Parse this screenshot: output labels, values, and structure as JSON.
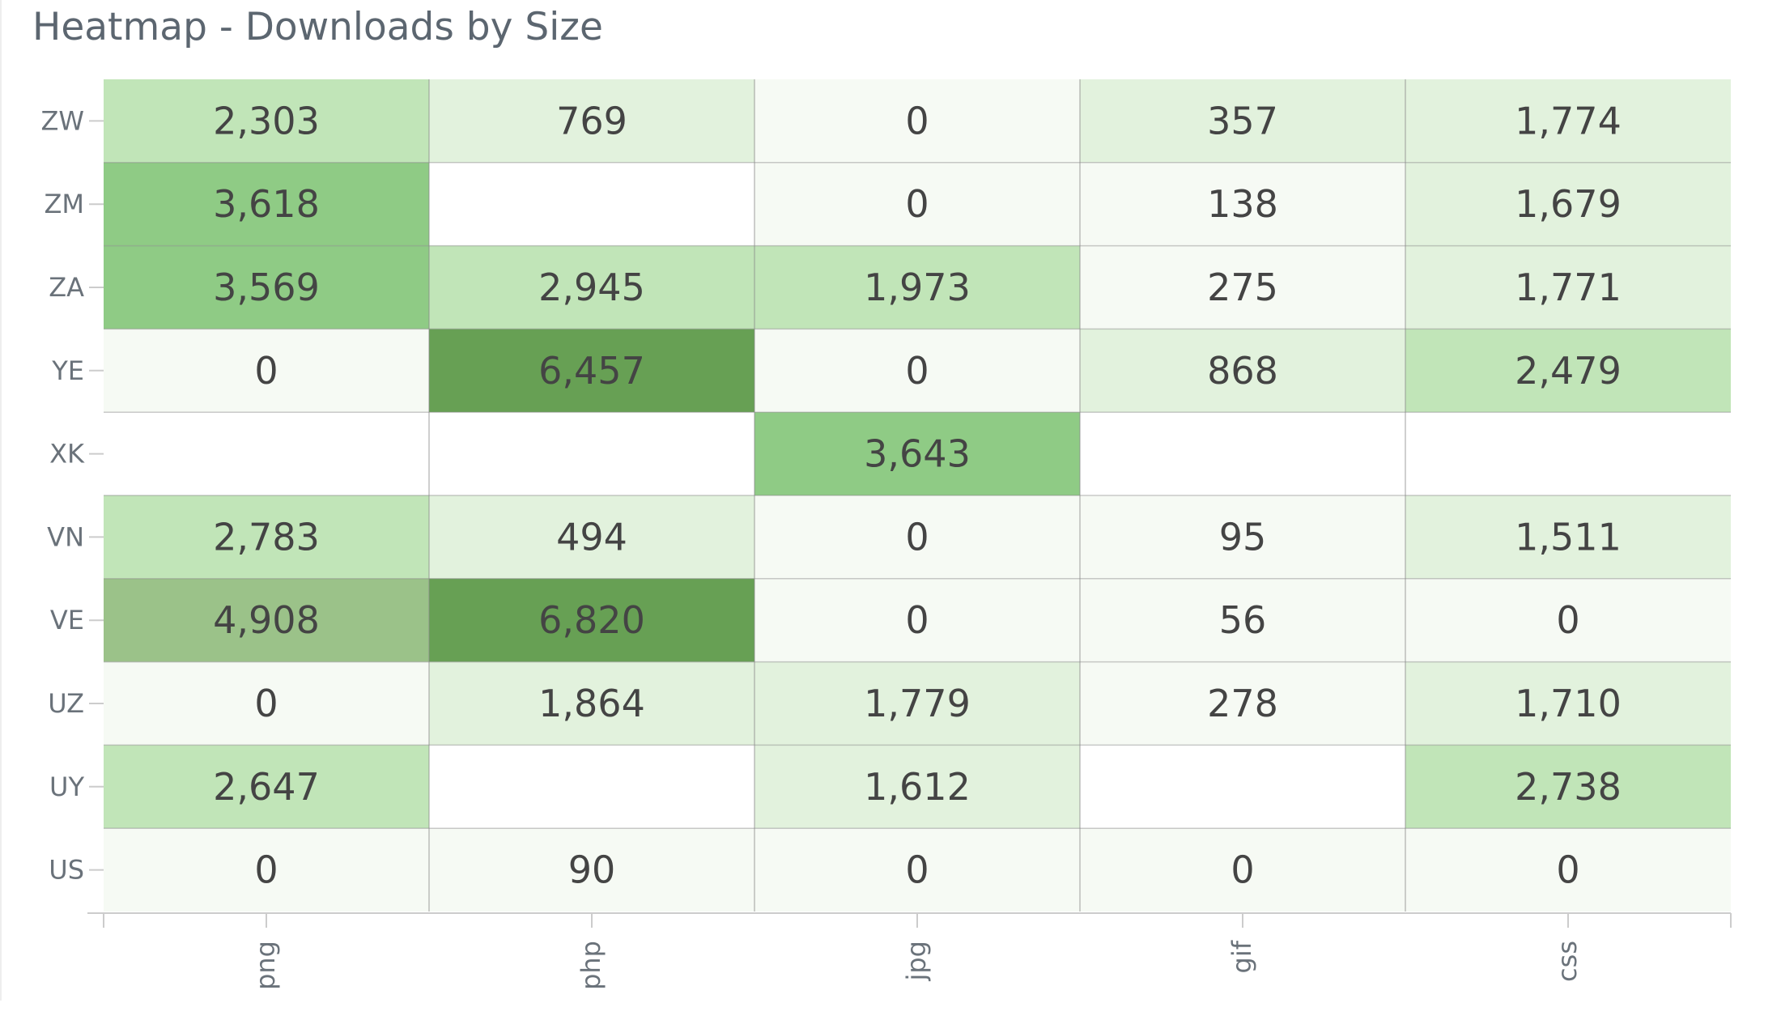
{
  "chart_data": {
    "type": "heatmap",
    "title": "Heatmap - Downloads by Size",
    "x_categories": [
      "png",
      "php",
      "jpg",
      "gif",
      "css"
    ],
    "y_categories": [
      "ZW",
      "ZM",
      "ZA",
      "YE",
      "XK",
      "VN",
      "VE",
      "UZ",
      "UY",
      "US"
    ],
    "values": [
      [
        2303,
        769,
        0,
        357,
        1774
      ],
      [
        3618,
        null,
        0,
        138,
        1679
      ],
      [
        3569,
        2945,
        1973,
        275,
        1771
      ],
      [
        0,
        6457,
        0,
        868,
        2479
      ],
      [
        null,
        null,
        3643,
        null,
        null
      ],
      [
        2783,
        494,
        0,
        95,
        1511
      ],
      [
        4908,
        6820,
        0,
        56,
        0
      ],
      [
        0,
        1864,
        1779,
        278,
        1710
      ],
      [
        2647,
        null,
        1612,
        null,
        2738
      ],
      [
        0,
        90,
        0,
        0,
        0
      ]
    ],
    "value_labels": [
      [
        "2,303",
        "769",
        "0",
        "357",
        "1,774"
      ],
      [
        "3,618",
        "",
        "0",
        "138",
        "1,679"
      ],
      [
        "3,569",
        "2,945",
        "1,973",
        "275",
        "1,771"
      ],
      [
        "0",
        "6,457",
        "0",
        "868",
        "2,479"
      ],
      [
        "",
        "",
        "3,643",
        "",
        ""
      ],
      [
        "2,783",
        "494",
        "0",
        "95",
        "1,511"
      ],
      [
        "4,908",
        "6,820",
        "0",
        "56",
        "0"
      ],
      [
        "0",
        "1,864",
        "1,779",
        "278",
        "1,710"
      ],
      [
        "2,647",
        "",
        "1,612",
        "",
        "2,738"
      ],
      [
        "0",
        "90",
        "0",
        "0",
        "0"
      ]
    ],
    "color_scale": [
      "#f6faf4",
      "#e2f2dd",
      "#c1e5b8",
      "#8fcb85",
      "#9bc289",
      "#67a054"
    ],
    "empty_color": "#ffffff",
    "grid": true,
    "legend": "none"
  }
}
